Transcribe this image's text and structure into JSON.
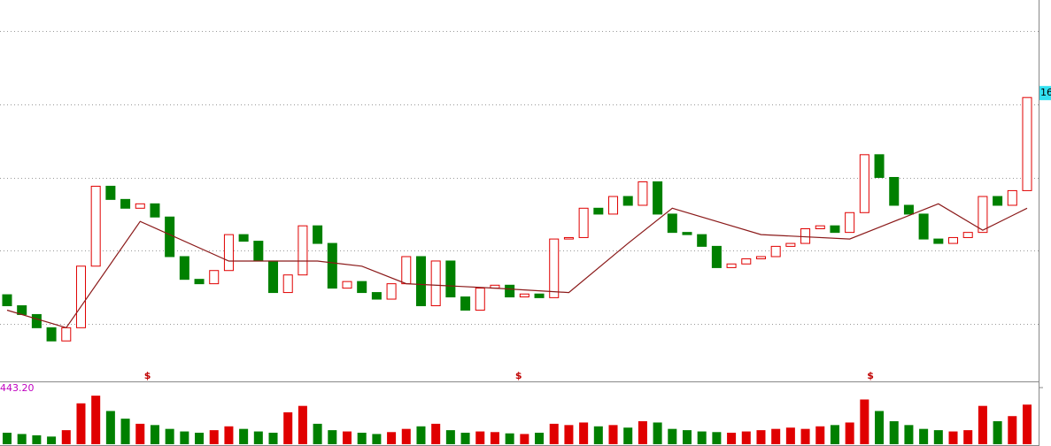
{
  "chart_data": {
    "type": "candlestick",
    "open": [
      13.4,
      13.25,
      13.13,
      12.95,
      12.77,
      12.95,
      13.79,
      14.88,
      14.7,
      14.58,
      14.64,
      14.46,
      13.92,
      13.61,
      13.55,
      13.73,
      14.22,
      14.13,
      13.86,
      13.43,
      13.67,
      14.34,
      14.1,
      13.49,
      13.58,
      13.43,
      13.34,
      13.55,
      13.92,
      13.25,
      13.86,
      13.37,
      13.19,
      13.49,
      13.53,
      13.37,
      13.41,
      13.36,
      14.16,
      14.18,
      14.58,
      14.5,
      14.74,
      14.62,
      14.94,
      14.5,
      14.25,
      14.22,
      14.06,
      13.77,
      13.82,
      13.89,
      13.92,
      14.06,
      14.1,
      14.3,
      14.34,
      14.25,
      14.52,
      15.31,
      15.0,
      14.62,
      14.5,
      14.16,
      14.1,
      14.18,
      14.25,
      14.74,
      14.62,
      14.82
    ],
    "close": [
      13.25,
      13.13,
      12.95,
      12.77,
      12.95,
      13.79,
      14.88,
      14.7,
      14.58,
      14.64,
      14.46,
      13.92,
      13.61,
      13.55,
      13.73,
      14.22,
      14.13,
      13.86,
      13.43,
      13.67,
      14.34,
      14.1,
      13.49,
      13.58,
      13.43,
      13.34,
      13.55,
      13.92,
      13.25,
      13.86,
      13.37,
      13.19,
      13.49,
      13.53,
      13.37,
      13.41,
      13.36,
      14.16,
      14.18,
      14.58,
      14.5,
      14.74,
      14.62,
      14.94,
      14.5,
      14.25,
      14.22,
      14.06,
      13.77,
      13.82,
      13.89,
      13.92,
      14.06,
      14.1,
      14.3,
      14.34,
      14.25,
      14.52,
      15.31,
      15.0,
      14.62,
      14.5,
      14.16,
      14.1,
      14.18,
      14.25,
      14.74,
      14.62,
      14.82,
      16.09
    ],
    "volume": [
      90,
      80,
      70,
      60,
      110,
      320,
      380,
      260,
      200,
      160,
      150,
      120,
      100,
      90,
      110,
      140,
      120,
      100,
      90,
      250,
      300,
      160,
      110,
      100,
      90,
      80,
      95,
      120,
      140,
      160,
      110,
      90,
      100,
      95,
      85,
      80,
      90,
      160,
      150,
      170,
      140,
      150,
      130,
      180,
      170,
      120,
      110,
      100,
      95,
      90,
      100,
      110,
      120,
      130,
      120,
      140,
      150,
      170,
      350,
      260,
      180,
      150,
      120,
      110,
      100,
      110,
      300,
      180,
      220,
      310
    ],
    "ylim": [
      12.23,
      17.42
    ],
    "grid_values": [
      13,
      14,
      15,
      16,
      17
    ],
    "up_color": "#e00000",
    "down_color": "#008000",
    "ma": {
      "x": [
        0,
        4,
        9,
        15,
        21,
        24,
        27,
        33,
        38,
        42,
        45,
        51,
        57,
        63,
        66,
        69
      ],
      "values": [
        13.19,
        12.95,
        14.4,
        13.86,
        13.86,
        13.79,
        13.55,
        13.49,
        13.43,
        14.1,
        14.58,
        14.22,
        14.16,
        14.64,
        14.28,
        14.58
      ],
      "color": "#8b1a1a"
    },
    "markers": [
      {
        "index": 9.5,
        "label": "$"
      },
      {
        "index": 34.6,
        "label": "$"
      },
      {
        "index": 58.4,
        "label": "$"
      }
    ],
    "last_price_label": "16",
    "volume_ylim": [
      0,
      443.2
    ],
    "volume_ticks": [
      {
        "value": 443.2,
        "label": "443.20"
      }
    ]
  }
}
